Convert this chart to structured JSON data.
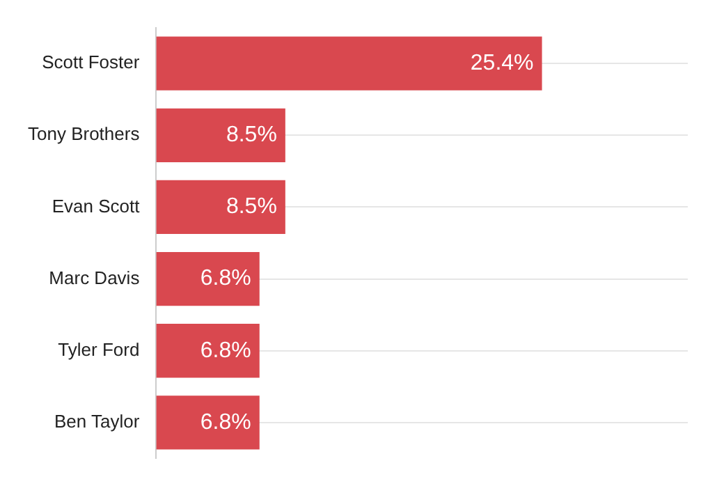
{
  "chart_data": {
    "type": "bar",
    "orientation": "horizontal",
    "categories": [
      "Scott Foster",
      "Tony Brothers",
      "Evan Scott",
      "Marc Davis",
      "Tyler Ford",
      "Ben Taylor"
    ],
    "values": [
      25.4,
      8.5,
      8.5,
      6.8,
      6.8,
      6.8
    ],
    "value_labels": [
      "25.4%",
      "8.5%",
      "8.5%",
      "6.8%",
      "6.8%",
      "6.8%"
    ],
    "color": "#d9484f",
    "xlim": [
      0,
      35
    ],
    "grid": "y",
    "tick_labels": "y"
  }
}
